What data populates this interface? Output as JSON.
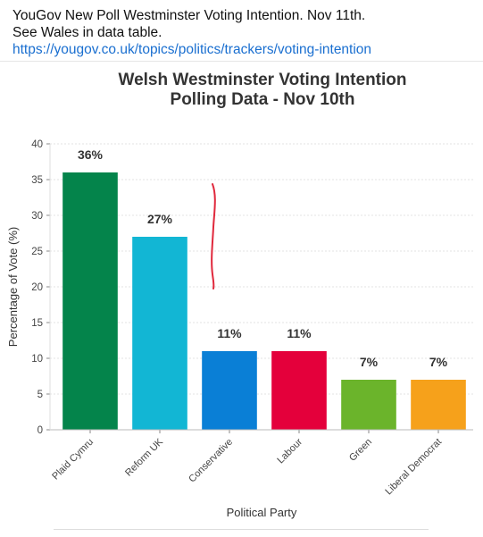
{
  "post": {
    "line1": "YouGov New Poll Westminster Voting Intention. Nov 11th.",
    "line2_prefix": "See Wales in data table. ",
    "link_text": "https://yougov.co.uk/topics/politics/trackers/voting-intention"
  },
  "chart_data": {
    "type": "bar",
    "title": "Welsh Westminster Voting Intention",
    "subtitle": "Polling Data - Nov 10th",
    "xlabel": "Political Party",
    "ylabel": "Percentage of Vote (%)",
    "ylim": [
      0,
      40
    ],
    "yticks": [
      0,
      5,
      10,
      15,
      20,
      25,
      30,
      35,
      40
    ],
    "grid": true,
    "categories": [
      "Plaid Cymru",
      "Reform UK",
      "Conservative",
      "Labour",
      "Green",
      "Liberal Democrat"
    ],
    "values": [
      36,
      27,
      11,
      11,
      7,
      7
    ],
    "data_labels": [
      "36%",
      "27%",
      "11%",
      "11%",
      "7%",
      "7%"
    ],
    "colors": [
      "#04844b",
      "#12b6d4",
      "#0a7fd6",
      "#e4003b",
      "#6bb42b",
      "#f6a11b"
    ],
    "annotation": {
      "type": "hand-drawn-line",
      "color": "#e0283c"
    }
  }
}
